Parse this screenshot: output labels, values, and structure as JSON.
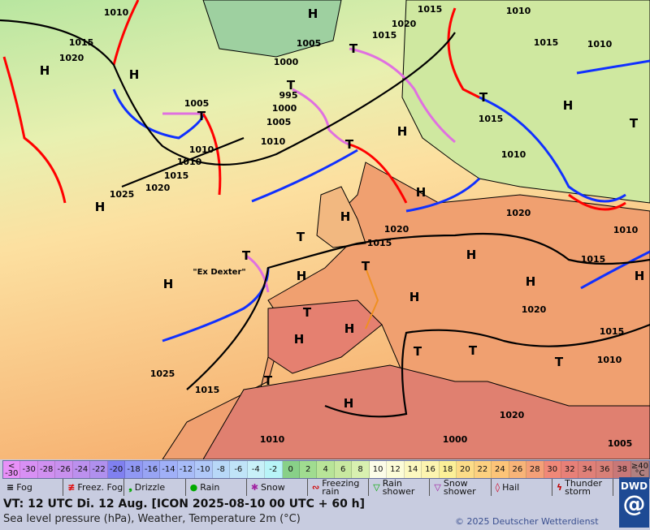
{
  "map": {
    "colors": {
      "sea_north": "#b8e6a0",
      "sea_mid": "#fde8a0",
      "sea_south": "#f6b870",
      "land_south": "#e48870",
      "cold_front": "#1030ff",
      "warm_front": "#ff0000",
      "occluded_front": "#e070e0"
    },
    "high_labels": [
      "H",
      "H",
      "H",
      "H",
      "H",
      "H",
      "H",
      "H",
      "H",
      "H",
      "H",
      "H",
      "H",
      "H",
      "H",
      "H",
      "H"
    ],
    "low_labels": [
      "T",
      "T",
      "T",
      "T",
      "T",
      "T",
      "T",
      "T",
      "T",
      "T",
      "T",
      "T",
      "T",
      "T"
    ],
    "pressure_labels": [
      "1010",
      "1015",
      "1020",
      "1000",
      "995",
      "1005",
      "1010",
      "1000",
      "1005",
      "1010",
      "1015",
      "1020",
      "1025",
      "1015",
      "1020",
      "1015",
      "1010",
      "1020",
      "1015",
      "1010",
      "1015",
      "1020",
      "1015",
      "1010",
      "1015",
      "1010",
      "1015",
      "1020",
      "1010",
      "1005",
      "1025",
      "1010",
      "1005",
      "1010",
      "1015",
      "1020",
      "1000"
    ],
    "storm_label": "\"Ex Dexter\""
  },
  "temperature_scale": [
    {
      "label": "< -30",
      "color": "#e890f8"
    },
    {
      "label": "-30",
      "color": "#d890f4"
    },
    {
      "label": "-28",
      "color": "#d090f0"
    },
    {
      "label": "-26",
      "color": "#c890ee"
    },
    {
      "label": "-24",
      "color": "#bc90ee"
    },
    {
      "label": "-22",
      "color": "#b090ee"
    },
    {
      "label": "-20",
      "color": "#8080f0"
    },
    {
      "label": "-18",
      "color": "#9098f4"
    },
    {
      "label": "-16",
      "color": "#98a4f4"
    },
    {
      "label": "-14",
      "color": "#a0b0f8"
    },
    {
      "label": "-12",
      "color": "#a8bcf8"
    },
    {
      "label": "-10",
      "color": "#b0c8f8"
    },
    {
      "label": "-8",
      "color": "#b8d8f8"
    },
    {
      "label": "-6",
      "color": "#c0e4f8"
    },
    {
      "label": "-4",
      "color": "#c8f0f8"
    },
    {
      "label": "-2",
      "color": "#b8f4f8"
    },
    {
      "label": "0",
      "color": "#88d088"
    },
    {
      "label": "2",
      "color": "#a0dc90"
    },
    {
      "label": "4",
      "color": "#b8e498"
    },
    {
      "label": "6",
      "color": "#c8e8a0"
    },
    {
      "label": "8",
      "color": "#d8f0b0"
    },
    {
      "label": "10",
      "color": "#fcfce8"
    },
    {
      "label": "12",
      "color": "#fcfcd8"
    },
    {
      "label": "14",
      "color": "#fcf8c0"
    },
    {
      "label": "16",
      "color": "#fcf4b0"
    },
    {
      "label": "18",
      "color": "#fcf098"
    },
    {
      "label": "20",
      "color": "#fcdc88"
    },
    {
      "label": "22",
      "color": "#fcd080"
    },
    {
      "label": "24",
      "color": "#fcc478"
    },
    {
      "label": "26",
      "color": "#f8b478"
    },
    {
      "label": "28",
      "color": "#f4a078"
    },
    {
      "label": "30",
      "color": "#f08878"
    },
    {
      "label": "32",
      "color": "#e88078"
    },
    {
      "label": "34",
      "color": "#e08078"
    },
    {
      "label": "36",
      "color": "#d88078"
    },
    {
      "label": "38",
      "color": "#c87878"
    },
    {
      "label": "≥40 °C",
      "color": "#b08080"
    }
  ],
  "weather_legend": [
    {
      "label": "Fog",
      "icon": "fog-icon",
      "symbol": "≡",
      "color": "#000"
    },
    {
      "label": "Freez. Fog",
      "icon": "freezing-fog-icon",
      "symbol": "≢",
      "color": "#e00000"
    },
    {
      "label": "Drizzle",
      "icon": "drizzle-icon",
      "symbol": "❟",
      "color": "#0a0"
    },
    {
      "label": "Rain",
      "icon": "rain-icon",
      "symbol": "●",
      "color": "#0a0"
    },
    {
      "label": "Snow",
      "icon": "snow-icon",
      "symbol": "✱",
      "color": "#a020a0"
    },
    {
      "label": "Freezing rain",
      "icon": "freezing-rain-icon",
      "symbol": "∾",
      "color": "#d00000"
    },
    {
      "label": "Rain shower",
      "icon": "rain-shower-icon",
      "symbol": "▽",
      "color": "#0a0"
    },
    {
      "label": "Snow shower",
      "icon": "snow-shower-icon",
      "symbol": "▽",
      "color": "#a020a0"
    },
    {
      "label": "Hail",
      "icon": "hail-icon",
      "symbol": "◊",
      "color": "#d00020"
    },
    {
      "label": "Thunder storm",
      "icon": "thunderstorm-icon",
      "symbol": "ϟ",
      "color": "#c00000"
    }
  ],
  "valid_time": "VT: 12 UTC Di.  12 Aug. [ICON 2025-08-10  00 UTC + 60 h]",
  "subtitle": "Sea level pressure (hPa), Weather, Temperature 2m (°C)",
  "copyright": "© 2025 Deutscher Wetterdienst",
  "logo": "DWD"
}
